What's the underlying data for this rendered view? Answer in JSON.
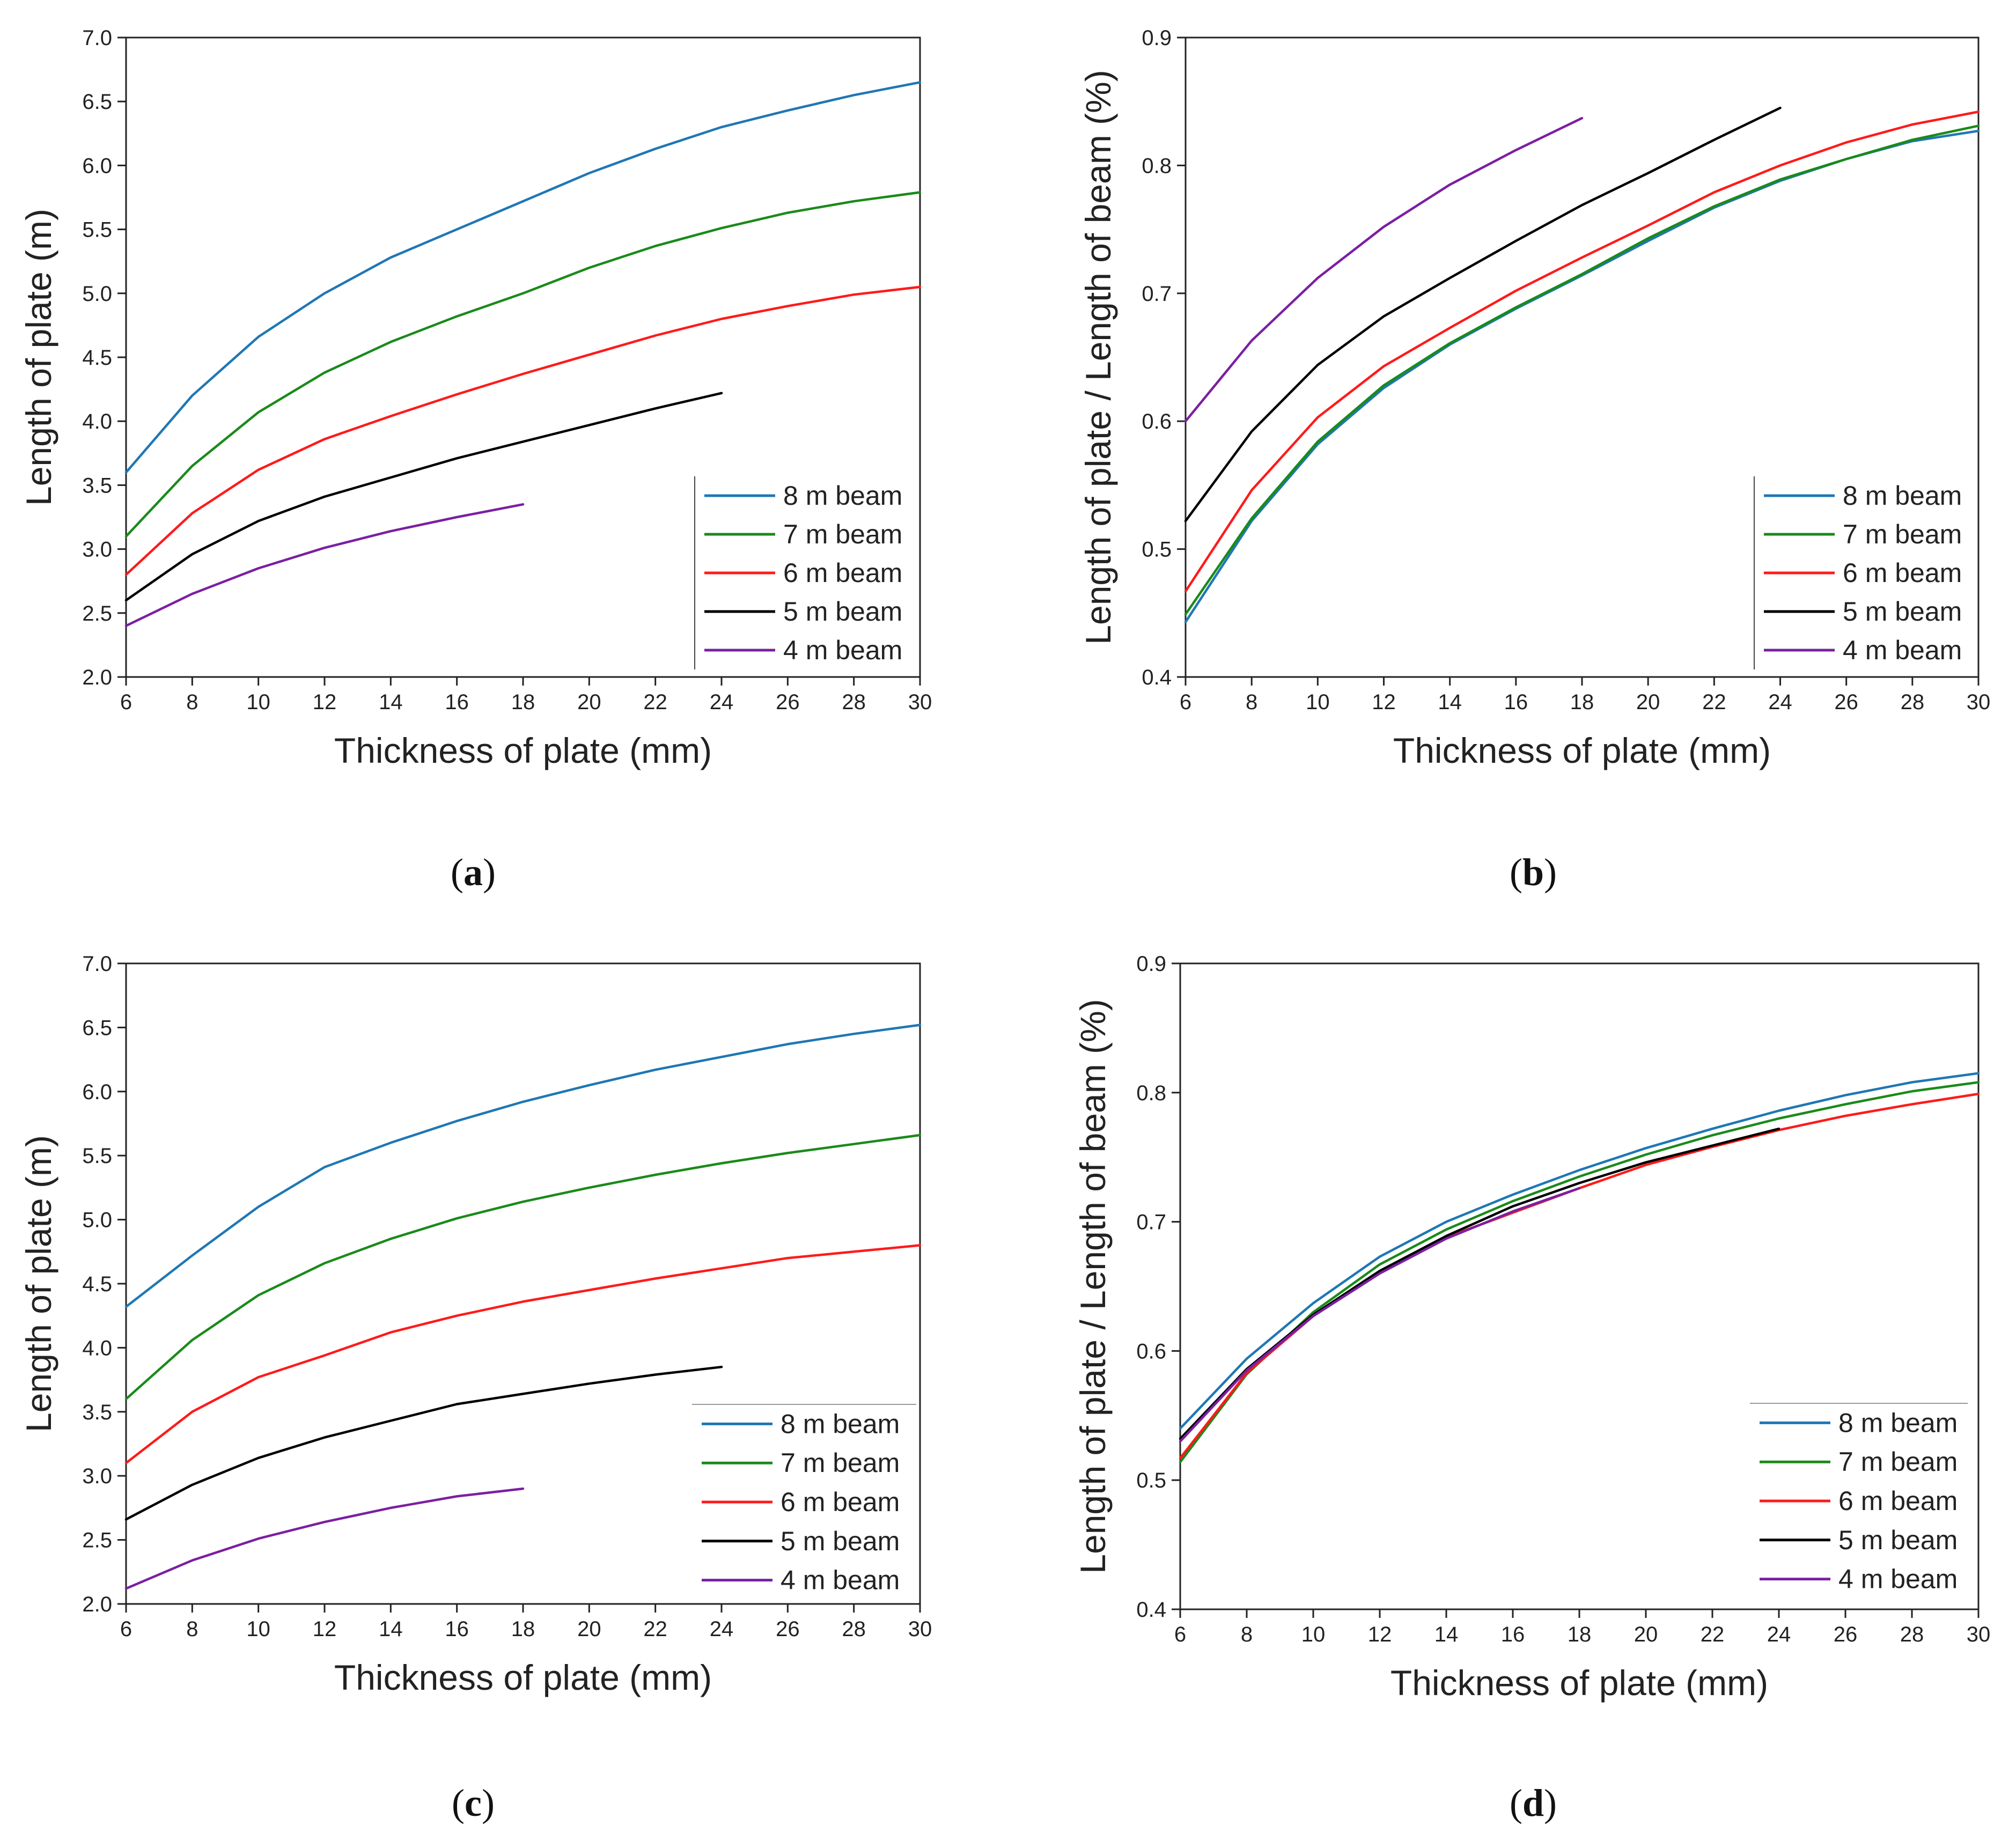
{
  "colors": {
    "blue": "#1f77b4",
    "green": "#1a8a1a",
    "red": "#ff1a1a",
    "black": "#000000",
    "purple": "#7b1fa2"
  },
  "chart_data": [
    {
      "id": "a",
      "caption": "a",
      "type": "line",
      "xlabel": "Thickness of plate (mm)",
      "ylabel": "Length of plate (m)",
      "xlim": [
        6,
        30
      ],
      "ylim": [
        2.0,
        7.0
      ],
      "xticks": [
        "6",
        "8",
        "10",
        "12",
        "14",
        "16",
        "18",
        "20",
        "22",
        "24",
        "26",
        "28",
        "30"
      ],
      "yticks": [
        "2.0",
        "2.5",
        "3.0",
        "3.5",
        "4.0",
        "4.5",
        "5.0",
        "5.5",
        "6.0",
        "6.5",
        "7.0"
      ],
      "legend_position": "bottom-right",
      "series": [
        {
          "name": "8 m beam",
          "color": "#1f77b4",
          "x": [
            6,
            8,
            10,
            12,
            14,
            16,
            18,
            20,
            22,
            24,
            26,
            28,
            30
          ],
          "y": [
            3.6,
            4.2,
            4.66,
            5.0,
            5.28,
            5.5,
            5.72,
            5.94,
            6.13,
            6.3,
            6.43,
            6.55,
            6.65
          ]
        },
        {
          "name": "7 m beam",
          "color": "#1a8a1a",
          "x": [
            6,
            8,
            10,
            12,
            14,
            16,
            18,
            20,
            22,
            24,
            26,
            28,
            30
          ],
          "y": [
            3.1,
            3.65,
            4.07,
            4.38,
            4.62,
            4.82,
            5.0,
            5.2,
            5.37,
            5.51,
            5.63,
            5.72,
            5.79
          ]
        },
        {
          "name": "6 m beam",
          "color": "#ff1a1a",
          "x": [
            6,
            8,
            10,
            12,
            14,
            16,
            18,
            20,
            22,
            24,
            26,
            28,
            30
          ],
          "y": [
            2.8,
            3.28,
            3.62,
            3.86,
            4.04,
            4.21,
            4.37,
            4.52,
            4.67,
            4.8,
            4.9,
            4.99,
            5.05
          ]
        },
        {
          "name": "5 m beam",
          "color": "#000000",
          "x": [
            6,
            8,
            10,
            12,
            14,
            16,
            18,
            20,
            22,
            24
          ],
          "y": [
            2.6,
            2.96,
            3.22,
            3.41,
            3.56,
            3.71,
            3.84,
            3.97,
            4.1,
            4.22
          ]
        },
        {
          "name": "4 m beam",
          "color": "#7b1fa2",
          "x": [
            6,
            8,
            10,
            12,
            14,
            16,
            18
          ],
          "y": [
            2.4,
            2.65,
            2.85,
            3.01,
            3.14,
            3.25,
            3.35
          ]
        }
      ]
    },
    {
      "id": "b",
      "caption": "b",
      "type": "line",
      "xlabel": "Thickness of plate (mm)",
      "ylabel": "Length of plate / Length of beam (%)",
      "xlim": [
        6,
        30
      ],
      "ylim": [
        0.4,
        0.9
      ],
      "xticks": [
        "6",
        "8",
        "10",
        "12",
        "14",
        "16",
        "18",
        "20",
        "22",
        "24",
        "26",
        "28",
        "30"
      ],
      "yticks": [
        "0.4",
        "0.5",
        "0.6",
        "0.7",
        "0.8",
        "0.9"
      ],
      "legend_position": "bottom-right",
      "series": [
        {
          "name": "8 m beam",
          "color": "#1f77b4",
          "x": [
            6,
            8,
            10,
            12,
            14,
            16,
            18,
            20,
            22,
            24,
            26,
            28,
            30
          ],
          "y": [
            0.443,
            0.522,
            0.582,
            0.626,
            0.66,
            0.688,
            0.714,
            0.741,
            0.767,
            0.788,
            0.805,
            0.819,
            0.827
          ]
        },
        {
          "name": "7 m beam",
          "color": "#1a8a1a",
          "x": [
            6,
            8,
            10,
            12,
            14,
            16,
            18,
            20,
            22,
            24,
            26,
            28,
            30
          ],
          "y": [
            0.449,
            0.524,
            0.584,
            0.628,
            0.661,
            0.689,
            0.715,
            0.743,
            0.768,
            0.789,
            0.805,
            0.82,
            0.831
          ]
        },
        {
          "name": "6 m beam",
          "color": "#ff1a1a",
          "x": [
            6,
            8,
            10,
            12,
            14,
            16,
            18,
            20,
            22,
            24,
            26,
            28,
            30
          ],
          "y": [
            0.467,
            0.546,
            0.603,
            0.643,
            0.673,
            0.702,
            0.728,
            0.753,
            0.779,
            0.8,
            0.818,
            0.832,
            0.842
          ]
        },
        {
          "name": "5 m beam",
          "color": "#000000",
          "x": [
            6,
            8,
            10,
            12,
            14,
            16,
            18,
            20,
            22,
            24
          ],
          "y": [
            0.522,
            0.592,
            0.644,
            0.682,
            0.712,
            0.741,
            0.769,
            0.794,
            0.82,
            0.845
          ]
        },
        {
          "name": "4 m beam",
          "color": "#7b1fa2",
          "x": [
            6,
            8,
            10,
            12,
            14,
            16,
            18
          ],
          "y": [
            0.6,
            0.663,
            0.712,
            0.752,
            0.785,
            0.812,
            0.837
          ]
        }
      ]
    },
    {
      "id": "c",
      "caption": "c",
      "type": "line",
      "xlabel": "Thickness of plate (mm)",
      "ylabel": "Length of plate (m)",
      "xlim": [
        6,
        30
      ],
      "ylim": [
        2.0,
        7.0
      ],
      "xticks": [
        "6",
        "8",
        "10",
        "12",
        "14",
        "16",
        "18",
        "20",
        "22",
        "24",
        "26",
        "28",
        "30"
      ],
      "yticks": [
        "2.0",
        "2.5",
        "3.0",
        "3.5",
        "4.0",
        "4.5",
        "5.0",
        "5.5",
        "6.0",
        "6.5",
        "7.0"
      ],
      "legend_position": "bottom-right",
      "series": [
        {
          "name": "8 m beam",
          "color": "#1f77b4",
          "x": [
            6,
            8,
            10,
            12,
            14,
            16,
            18,
            20,
            22,
            24,
            26,
            28,
            30
          ],
          "y": [
            4.32,
            4.72,
            5.1,
            5.41,
            5.6,
            5.77,
            5.92,
            6.05,
            6.17,
            6.27,
            6.37,
            6.45,
            6.52
          ]
        },
        {
          "name": "7 m beam",
          "color": "#1a8a1a",
          "x": [
            6,
            8,
            10,
            12,
            14,
            16,
            18,
            20,
            22,
            24,
            26,
            28,
            30
          ],
          "y": [
            3.6,
            4.06,
            4.41,
            4.66,
            4.85,
            5.01,
            5.14,
            5.25,
            5.35,
            5.44,
            5.52,
            5.59,
            5.66
          ]
        },
        {
          "name": "6 m beam",
          "color": "#ff1a1a",
          "x": [
            6,
            8,
            10,
            12,
            14,
            16,
            18,
            20,
            22,
            24,
            26,
            28,
            30
          ],
          "y": [
            3.1,
            3.5,
            3.77,
            3.94,
            4.12,
            4.25,
            4.36,
            4.45,
            4.54,
            4.62,
            4.7,
            4.75,
            4.8
          ]
        },
        {
          "name": "5 m beam",
          "color": "#000000",
          "x": [
            6,
            8,
            10,
            12,
            14,
            16,
            18,
            20,
            22,
            24
          ],
          "y": [
            2.66,
            2.93,
            3.14,
            3.3,
            3.43,
            3.56,
            3.64,
            3.72,
            3.79,
            3.85
          ]
        },
        {
          "name": "4 m beam",
          "color": "#7b1fa2",
          "x": [
            6,
            8,
            10,
            12,
            14,
            16,
            18
          ],
          "y": [
            2.12,
            2.34,
            2.51,
            2.64,
            2.75,
            2.84,
            2.9
          ]
        }
      ]
    },
    {
      "id": "d",
      "caption": "d",
      "type": "line",
      "xlabel": "Thickness of plate (mm)",
      "ylabel": "Length of plate / Length of beam (%)",
      "xlim": [
        6,
        30
      ],
      "ylim": [
        0.4,
        0.9
      ],
      "xticks": [
        "6",
        "8",
        "10",
        "12",
        "14",
        "16",
        "18",
        "20",
        "22",
        "24",
        "26",
        "28",
        "30"
      ],
      "yticks": [
        "0.4",
        "0.5",
        "0.6",
        "0.7",
        "0.8",
        "0.9"
      ],
      "legend_position": "bottom-right",
      "series": [
        {
          "name": "8 m beam",
          "color": "#1f77b4",
          "x": [
            6,
            8,
            10,
            12,
            14,
            16,
            18,
            20,
            22,
            24,
            26,
            28,
            30
          ],
          "y": [
            0.54,
            0.594,
            0.637,
            0.673,
            0.7,
            0.721,
            0.74,
            0.757,
            0.772,
            0.786,
            0.798,
            0.808,
            0.815
          ]
        },
        {
          "name": "7 m beam",
          "color": "#1a8a1a",
          "x": [
            6,
            8,
            10,
            12,
            14,
            16,
            18,
            20,
            22,
            24,
            26,
            28,
            30
          ],
          "y": [
            0.514,
            0.582,
            0.63,
            0.667,
            0.694,
            0.716,
            0.735,
            0.752,
            0.767,
            0.78,
            0.791,
            0.801,
            0.808
          ]
        },
        {
          "name": "6 m beam",
          "color": "#ff1a1a",
          "x": [
            6,
            8,
            10,
            12,
            14,
            16,
            18,
            20,
            22,
            24,
            26,
            28,
            30
          ],
          "y": [
            0.517,
            0.583,
            0.627,
            0.661,
            0.688,
            0.707,
            0.726,
            0.744,
            0.758,
            0.771,
            0.782,
            0.791,
            0.799
          ]
        },
        {
          "name": "5 m beam",
          "color": "#000000",
          "x": [
            6,
            8,
            10,
            12,
            14,
            16,
            18,
            20,
            22,
            24
          ],
          "y": [
            0.532,
            0.586,
            0.628,
            0.662,
            0.689,
            0.712,
            0.73,
            0.746,
            0.759,
            0.772
          ]
        },
        {
          "name": "4 m beam",
          "color": "#7b1fa2",
          "x": [
            6,
            8,
            10,
            12,
            14,
            16,
            18
          ],
          "y": [
            0.53,
            0.585,
            0.627,
            0.66,
            0.687,
            0.708,
            0.726
          ]
        }
      ]
    }
  ]
}
